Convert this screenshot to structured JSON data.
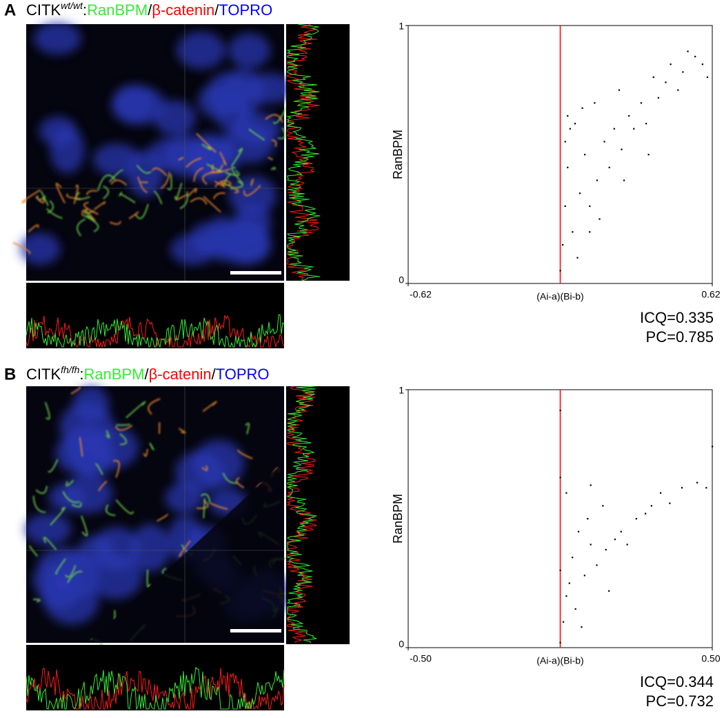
{
  "panels": [
    {
      "label": "A",
      "title_parts": [
        {
          "text": "CITK",
          "color": "#000000"
        },
        {
          "text": "wt/wt",
          "color": "#000000",
          "superscript": true
        },
        {
          "text": ":",
          "color": "#000000"
        },
        {
          "text": "RanBPM",
          "color": "#33ee33"
        },
        {
          "text": "/",
          "color": "#000000"
        },
        {
          "text": "β-catenin",
          "color": "#ff0000"
        },
        {
          "text": "/",
          "color": "#000000"
        },
        {
          "text": "TOPRO",
          "color": "#0000ff"
        }
      ]
    },
    {
      "label": "B",
      "title_parts": [
        {
          "text": "CITK",
          "color": "#000000"
        },
        {
          "text": "fh/fh",
          "color": "#000000",
          "superscript": true
        },
        {
          "text": ":",
          "color": "#000000"
        },
        {
          "text": "RanBPM",
          "color": "#33ee33"
        },
        {
          "text": "/",
          "color": "#000000"
        },
        {
          "text": "β-catenin",
          "color": "#ff0000"
        },
        {
          "text": "/",
          "color": "#000000"
        },
        {
          "text": "TOPRO",
          "color": "#0000ff"
        }
      ]
    }
  ],
  "chart_data": [
    {
      "type": "scatter",
      "xlabel": "(Ai-a)(Bi-b)",
      "ylabel": "RanBPM",
      "xlim": [
        -0.62,
        0.62
      ],
      "xticks": [
        -0.62,
        0.62
      ],
      "ylim": [
        0,
        1
      ],
      "yticks": [
        0,
        1
      ],
      "vline": 0,
      "vline_color": "#ff0000",
      "color": "#000000",
      "annotations": [
        "ICQ=0.335",
        "PC=0.785"
      ],
      "x": [
        0.0,
        0.01,
        0.02,
        0.03,
        0.02,
        0.05,
        0.04,
        0.08,
        0.1,
        0.06,
        0.12,
        0.15,
        0.09,
        0.18,
        0.2,
        0.14,
        0.22,
        0.25,
        0.28,
        0.3,
        0.24,
        0.33,
        0.35,
        0.38,
        0.4,
        0.43,
        0.45,
        0.48,
        0.5,
        0.52,
        0.55,
        0.58,
        0.6,
        0.12,
        0.03,
        0.07,
        0.16,
        0.26,
        0.36
      ],
      "y": [
        0.05,
        0.15,
        0.3,
        0.45,
        0.55,
        0.2,
        0.6,
        0.35,
        0.5,
        0.62,
        0.3,
        0.4,
        0.68,
        0.55,
        0.45,
        0.7,
        0.6,
        0.52,
        0.65,
        0.6,
        0.75,
        0.7,
        0.62,
        0.8,
        0.72,
        0.78,
        0.85,
        0.75,
        0.82,
        0.9,
        0.88,
        0.85,
        0.8,
        0.2,
        0.65,
        0.1,
        0.25,
        0.4,
        0.5
      ]
    },
    {
      "type": "scatter",
      "xlabel": "(Ai-a)(Bi-b)",
      "ylabel": "RanBPM",
      "xlim": [
        -0.5,
        0.5
      ],
      "xticks": [
        {
          "value": -0.5,
          "label": "-0.50"
        },
        {
          "value": 0.5,
          "label": "0.50"
        }
      ],
      "ylim": [
        0,
        1
      ],
      "yticks": [
        0,
        1
      ],
      "vline": 0,
      "vline_color": "#ff0000",
      "color": "#000000",
      "annotations": [
        "ICQ=0.344",
        "PC=0.732"
      ],
      "x": [
        0.0,
        0.01,
        0.02,
        0.0,
        0.03,
        0.05,
        0.04,
        0.08,
        0.1,
        0.06,
        0.12,
        0.15,
        0.09,
        0.18,
        0.2,
        0.14,
        0.22,
        0.25,
        0.28,
        0.3,
        0.33,
        0.36,
        0.4,
        0.45,
        0.48,
        0.5,
        0.0,
        0.0,
        0.1,
        0.02,
        0.07,
        0.16
      ],
      "y": [
        0.02,
        0.1,
        0.2,
        0.3,
        0.25,
        0.15,
        0.35,
        0.28,
        0.4,
        0.45,
        0.32,
        0.38,
        0.5,
        0.42,
        0.45,
        0.55,
        0.4,
        0.5,
        0.52,
        0.55,
        0.6,
        0.56,
        0.62,
        0.64,
        0.62,
        0.78,
        0.92,
        0.66,
        0.63,
        0.6,
        0.08,
        0.22
      ]
    }
  ]
}
